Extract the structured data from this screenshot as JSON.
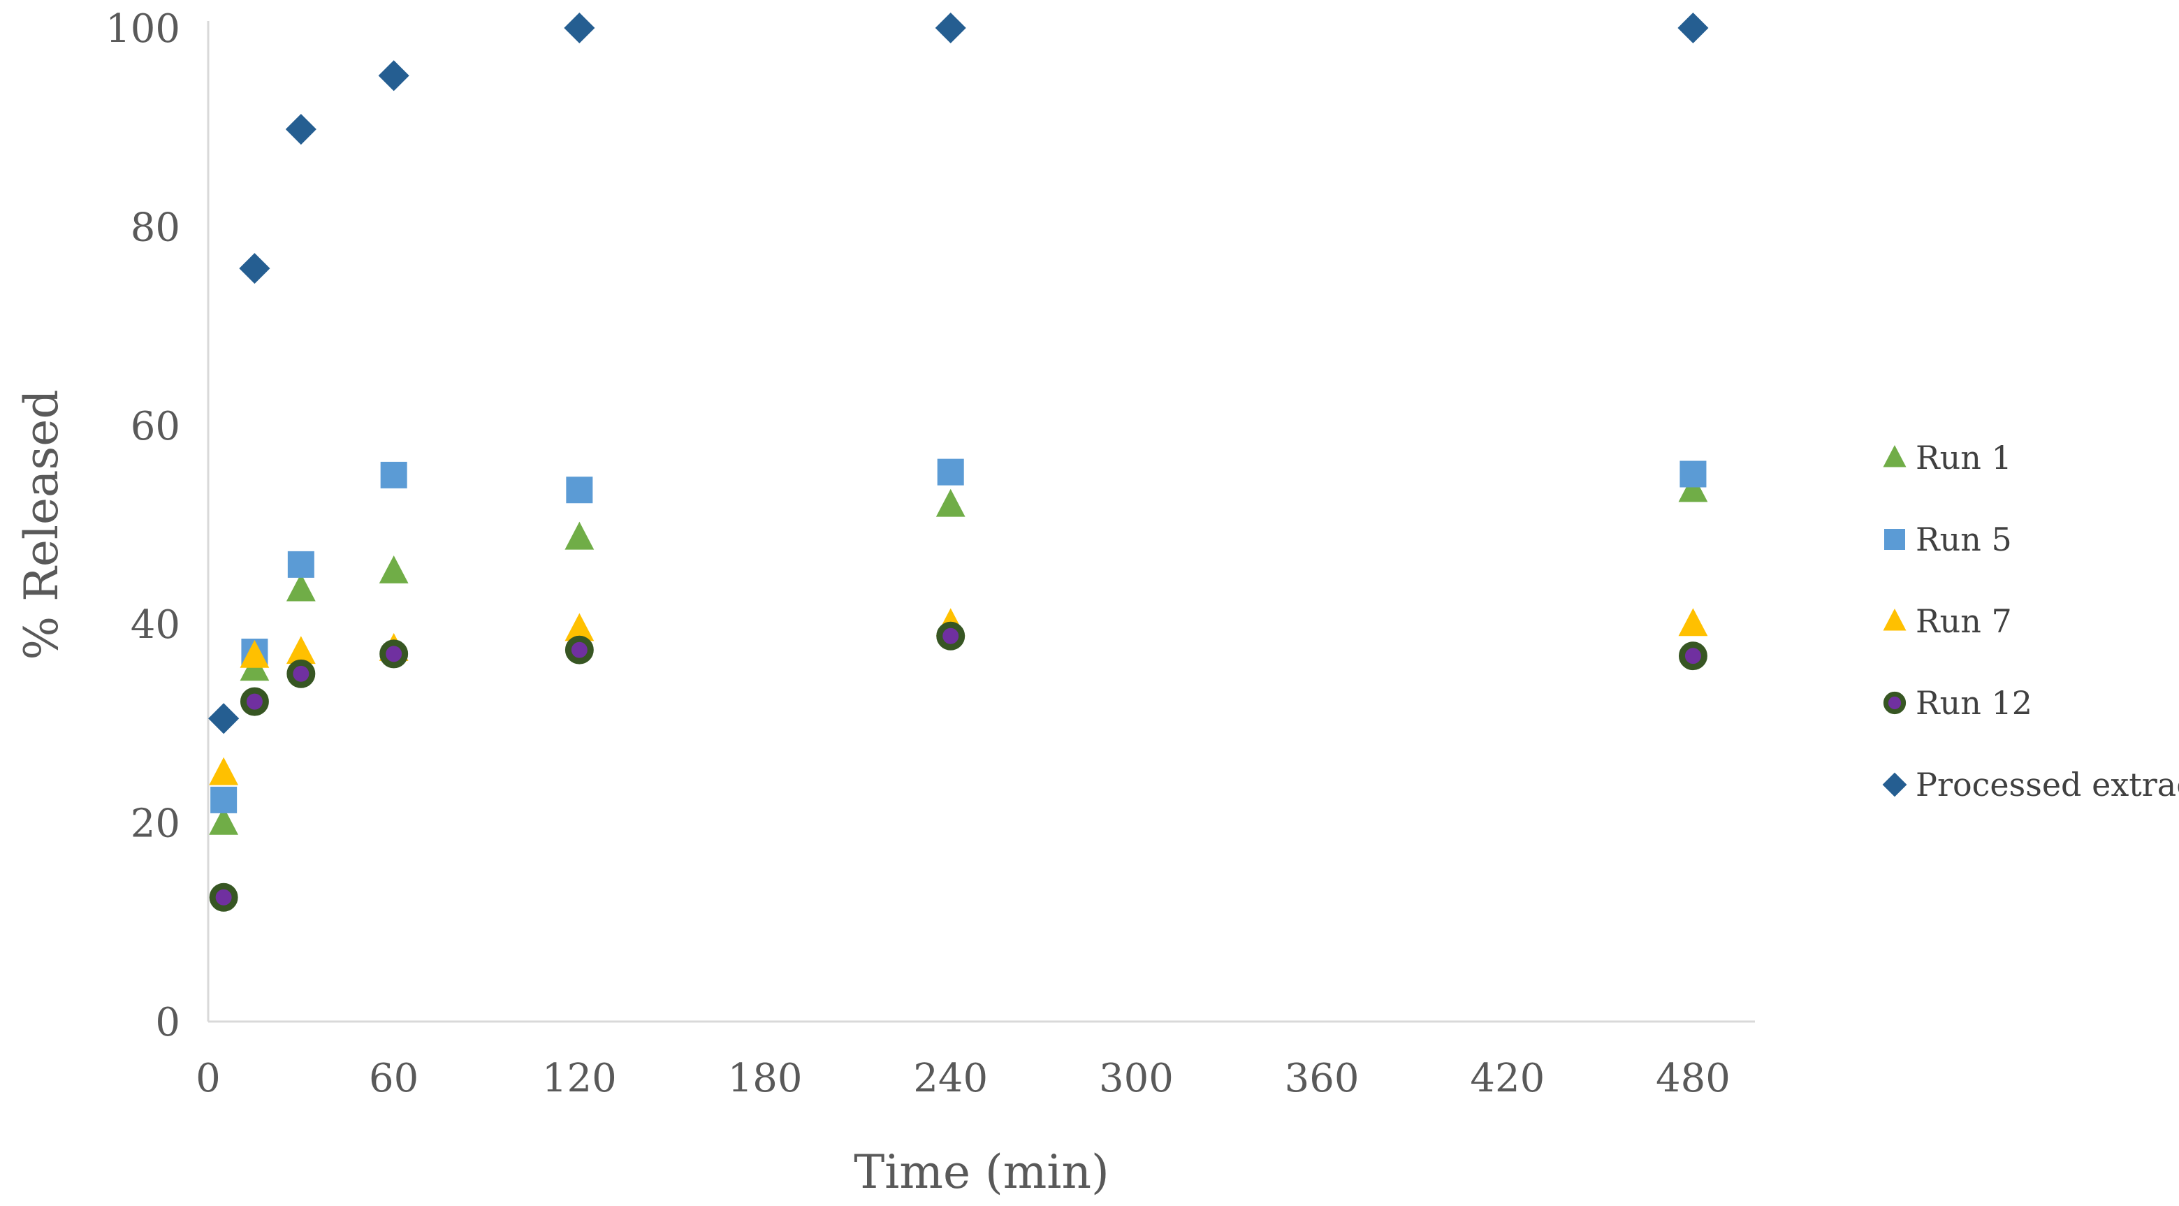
{
  "chart_data": {
    "type": "scatter",
    "title": "",
    "xlabel": "Time (min)",
    "ylabel": "% Released",
    "xlim": [
      0,
      500
    ],
    "ylim": [
      0,
      100
    ],
    "xticks": [
      0,
      60,
      120,
      180,
      240,
      300,
      360,
      420,
      480
    ],
    "yticks": [
      0,
      20,
      40,
      60,
      80,
      100
    ],
    "grid": false,
    "legend_position": "right",
    "series": [
      {
        "name": "Run 1",
        "marker": "triangle",
        "color": "#70AD47",
        "x": [
          5,
          15,
          30,
          60,
          120,
          240,
          480
        ],
        "y": [
          20,
          35.5,
          43.5,
          45.3,
          48.7,
          52,
          53.5
        ]
      },
      {
        "name": "Run 5",
        "marker": "square",
        "color": "#5B9BD5",
        "x": [
          5,
          15,
          30,
          60,
          120,
          240,
          480
        ],
        "y": [
          22.3,
          37.2,
          46,
          55,
          53.5,
          55.3,
          55.1
        ]
      },
      {
        "name": "Run 7",
        "marker": "triangle",
        "color": "#FFC000",
        "x": [
          5,
          15,
          30,
          60,
          120,
          240,
          480
        ],
        "y": [
          25,
          36.8,
          37.2,
          37.5,
          39.5,
          40,
          40
        ]
      },
      {
        "name": "Run 12",
        "marker": "circle",
        "color": "#7030A0",
        "stroke": "#375623",
        "x": [
          5,
          15,
          30,
          60,
          120,
          240,
          480
        ],
        "y": [
          12.5,
          32.2,
          35,
          37,
          37.4,
          38.8,
          36.8
        ]
      },
      {
        "name": "Processed extract",
        "marker": "diamond",
        "color": "#255E91",
        "x": [
          5,
          15,
          30,
          60,
          120,
          240,
          480
        ],
        "y": [
          30.5,
          75.8,
          89.8,
          95.2,
          100,
          100,
          100
        ]
      }
    ]
  }
}
